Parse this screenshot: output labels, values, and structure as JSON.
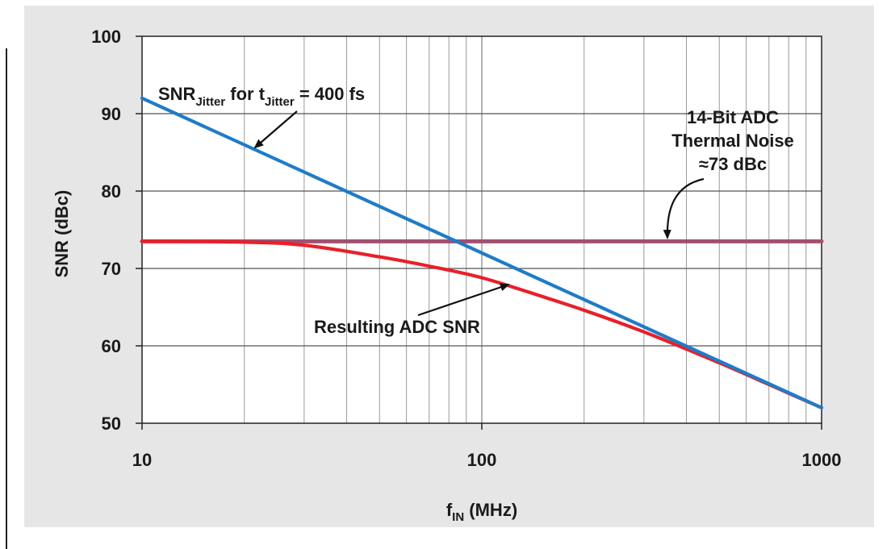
{
  "chart_data": {
    "type": "line",
    "xlabel_main": "f",
    "xlabel_sub": "IN",
    "xlabel_rest": " (MHz)",
    "ylabel": "SNR (dBc)",
    "x_scale": "log",
    "xlim": [
      10,
      1000
    ],
    "ylim": [
      50,
      100
    ],
    "x_ticks": [
      10,
      100,
      1000
    ],
    "x_tick_labels": [
      "10",
      "100",
      "1000"
    ],
    "y_ticks": [
      50,
      60,
      70,
      80,
      90,
      100
    ],
    "y_tick_labels": [
      "50",
      "60",
      "70",
      "80",
      "90",
      "100"
    ],
    "grid": true,
    "series": [
      {
        "key": "jitter",
        "color": "#1f7cc8",
        "x": [
          10,
          1000
        ],
        "y": [
          92.0,
          52.0
        ]
      },
      {
        "key": "thermal",
        "color": "#a05070",
        "x": [
          10,
          1000
        ],
        "y": [
          73.5,
          73.5
        ]
      },
      {
        "key": "resulting",
        "color": "#e8202a",
        "x": [
          10,
          20,
          30,
          50,
          70,
          100,
          150,
          200,
          300,
          500,
          700,
          1000
        ],
        "y": [
          73.5,
          73.4,
          73.0,
          71.5,
          70.3,
          68.8,
          66.4,
          64.6,
          61.8,
          57.8,
          55.0,
          52.0
        ]
      }
    ],
    "annotations": {
      "jitter_label": {
        "snr": "SNR",
        "snr_sub": "Jitter",
        "for": " for t",
        "t_sub": "Jitter",
        "rest": " = 400 fs"
      },
      "thermal_label": [
        "14-Bit ADC",
        "Thermal Noise",
        "≈73 dBc"
      ],
      "resulting_label": "Resulting ADC SNR"
    }
  }
}
